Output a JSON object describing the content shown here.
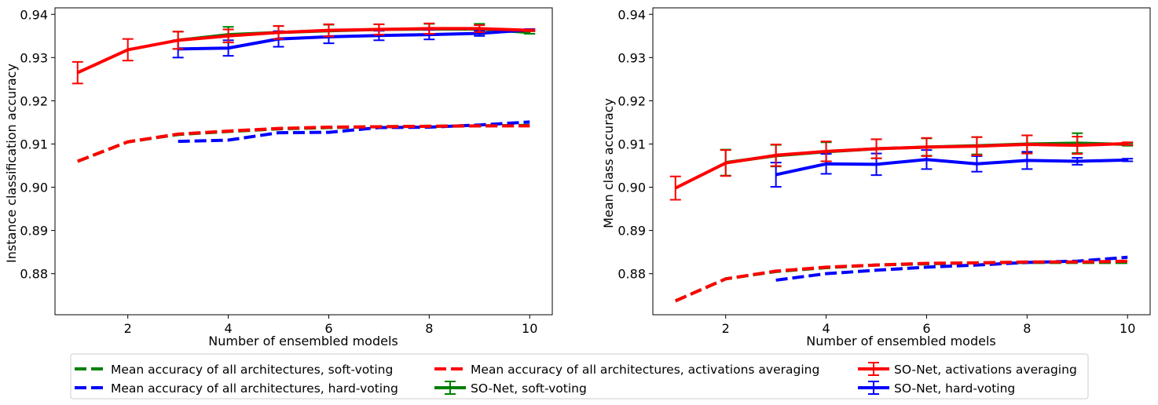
{
  "chart_data": [
    {
      "type": "line",
      "xlabel": "Number of ensembled models",
      "ylabel": "Instance classification accuracy",
      "xlim": [
        0.55,
        10.45
      ],
      "ylim": [
        0.8705,
        0.9415
      ],
      "xticks": [
        2,
        4,
        6,
        8,
        10
      ],
      "yticks": [
        0.88,
        0.89,
        0.9,
        0.91,
        0.92,
        0.93,
        0.94
      ],
      "ytick_labels": [
        "0.88",
        "0.89",
        "0.90",
        "0.91",
        "0.92",
        "0.93",
        "0.94"
      ],
      "series": [
        {
          "name": "Mean accuracy of all architectures, soft-voting",
          "color": "#008000",
          "style": "dashed",
          "x": [
            1,
            2,
            3,
            4,
            5,
            6,
            7,
            8,
            9,
            10
          ],
          "y": [
            0.906,
            0.9105,
            0.9122,
            0.9129,
            0.9135,
            0.9138,
            0.914,
            0.9141,
            0.9142,
            0.9143
          ]
        },
        {
          "name": "Mean accuracy of all architectures, hard-voting",
          "color": "#0000ff",
          "style": "dashed",
          "x": [
            3,
            4,
            5,
            6,
            7,
            8,
            9,
            10
          ],
          "y": [
            0.9106,
            0.9109,
            0.9126,
            0.9127,
            0.9138,
            0.9139,
            0.9144,
            0.9151
          ]
        },
        {
          "name": "Mean accuracy of all architectures, activations averaging",
          "color": "#ff0000",
          "style": "dashed",
          "x": [
            1,
            2,
            3,
            4,
            5,
            6,
            7,
            8,
            9,
            10
          ],
          "y": [
            0.906,
            0.9105,
            0.9123,
            0.913,
            0.9136,
            0.9139,
            0.914,
            0.9141,
            0.9142,
            0.9142
          ]
        },
        {
          "name": "SO-Net, soft-voting",
          "color": "#008000",
          "style": "solid",
          "x": [
            3,
            4,
            5,
            6,
            7,
            8,
            9,
            10
          ],
          "y": [
            0.934,
            0.9353,
            0.9358,
            0.9362,
            0.9365,
            0.9366,
            0.9366,
            0.9358
          ],
          "err": [
            0.002,
            0.0018,
            0.0015,
            0.0014,
            0.0012,
            0.0012,
            0.0012,
            0.0003
          ]
        },
        {
          "name": "SO-Net, hard-voting",
          "color": "#0000ff",
          "style": "solid",
          "x": [
            3,
            4,
            5,
            6,
            7,
            8,
            9,
            10
          ],
          "y": [
            0.932,
            0.9322,
            0.9343,
            0.9348,
            0.9351,
            0.9353,
            0.9356,
            0.9364
          ],
          "err": [
            0.002,
            0.0018,
            0.0018,
            0.0015,
            0.0011,
            0.0011,
            0.0006,
            0.0002
          ]
        },
        {
          "name": "SO-Net, activations averaging",
          "color": "#ff0000",
          "style": "solid",
          "x": [
            1,
            2,
            3,
            4,
            5,
            6,
            7,
            8,
            9,
            10
          ],
          "y": [
            0.9265,
            0.9318,
            0.934,
            0.935,
            0.9358,
            0.9363,
            0.9365,
            0.9367,
            0.9367,
            0.9363
          ],
          "err": [
            0.0025,
            0.0025,
            0.002,
            0.0015,
            0.0015,
            0.0014,
            0.0012,
            0.0012,
            0.0008,
            0.0002
          ]
        }
      ]
    },
    {
      "type": "line",
      "xlabel": "Number of ensembled models",
      "ylabel": "Mean class accuracy",
      "xlim": [
        0.55,
        10.45
      ],
      "ylim": [
        0.8705,
        0.9415
      ],
      "xticks": [
        2,
        4,
        6,
        8,
        10
      ],
      "yticks": [
        0.88,
        0.89,
        0.9,
        0.91,
        0.92,
        0.93,
        0.94
      ],
      "ytick_labels": [
        "0.88",
        "0.89",
        "0.90",
        "0.91",
        "0.92",
        "0.93",
        "0.94"
      ],
      "series": [
        {
          "name": "Mean accuracy of all architectures, soft-voting",
          "color": "#008000",
          "style": "dashed",
          "x": [
            1,
            2,
            3,
            4,
            5,
            6,
            7,
            8,
            9,
            10
          ],
          "y": [
            0.8737,
            0.8788,
            0.8805,
            0.8814,
            0.882,
            0.8823,
            0.8825,
            0.8826,
            0.8826,
            0.8826
          ]
        },
        {
          "name": "Mean accuracy of all architectures, hard-voting",
          "color": "#0000ff",
          "style": "dashed",
          "x": [
            3,
            4,
            5,
            6,
            7,
            8,
            9,
            10
          ],
          "y": [
            0.8785,
            0.88,
            0.8808,
            0.8815,
            0.882,
            0.8826,
            0.8829,
            0.8838
          ]
        },
        {
          "name": "Mean accuracy of all architectures, activations averaging",
          "color": "#ff0000",
          "style": "dashed",
          "x": [
            1,
            2,
            3,
            4,
            5,
            6,
            7,
            8,
            9,
            10
          ],
          "y": [
            0.8737,
            0.8788,
            0.8806,
            0.8815,
            0.882,
            0.8824,
            0.8825,
            0.8827,
            0.8827,
            0.8829
          ]
        },
        {
          "name": "SO-Net, soft-voting",
          "color": "#008000",
          "style": "solid",
          "x": [
            2,
            3,
            4,
            5,
            6,
            7,
            8,
            9,
            10
          ],
          "y": [
            0.9057,
            0.9073,
            0.9082,
            0.9089,
            0.9093,
            0.9096,
            0.91,
            0.9102,
            0.9099
          ],
          "err": [
            0.003,
            0.0025,
            0.0022,
            0.0022,
            0.002,
            0.002,
            0.002,
            0.0023,
            0.0003
          ]
        },
        {
          "name": "SO-Net, hard-voting",
          "color": "#0000ff",
          "style": "solid",
          "x": [
            3,
            4,
            5,
            6,
            7,
            8,
            9,
            10
          ],
          "y": [
            0.9029,
            0.9054,
            0.9053,
            0.9064,
            0.9054,
            0.9062,
            0.906,
            0.9063
          ],
          "err": [
            0.0028,
            0.0023,
            0.0025,
            0.0022,
            0.0018,
            0.002,
            0.0008,
            0.0003
          ]
        },
        {
          "name": "SO-Net, activations averaging",
          "color": "#ff0000",
          "style": "solid",
          "x": [
            1,
            2,
            3,
            4,
            5,
            6,
            7,
            8,
            9,
            10
          ],
          "y": [
            0.8998,
            0.9056,
            0.9074,
            0.9083,
            0.9089,
            0.9093,
            0.9095,
            0.9099,
            0.9097,
            0.9101
          ],
          "err": [
            0.0027,
            0.003,
            0.0025,
            0.0023,
            0.0022,
            0.0021,
            0.0021,
            0.0021,
            0.002,
            0.0003
          ]
        }
      ]
    }
  ],
  "legend": {
    "entries": [
      {
        "label": "Mean accuracy of all architectures, soft-voting",
        "color": "#008000",
        "style": "dashed"
      },
      {
        "label": "Mean accuracy of all architectures, hard-voting",
        "color": "#0000ff",
        "style": "dashed"
      },
      {
        "label": "Mean accuracy of all architectures, activations averaging",
        "color": "#ff0000",
        "style": "dashed"
      },
      {
        "label": "SO-Net, soft-voting",
        "color": "#008000",
        "style": "errorbar"
      },
      {
        "label": "SO-Net, activations averaging",
        "color": "#ff0000",
        "style": "errorbar"
      },
      {
        "label": "SO-Net, hard-voting",
        "color": "#0000ff",
        "style": "errorbar"
      }
    ]
  }
}
